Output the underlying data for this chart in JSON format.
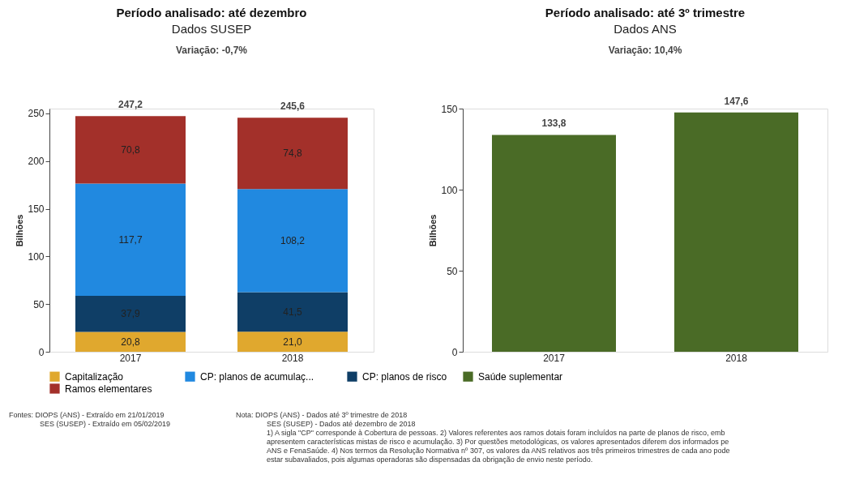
{
  "chart_data": [
    {
      "type": "bar",
      "title": "Período analisado: até dezembro",
      "subtitle": "Dados SUSEP",
      "ylabel": "Bilhões",
      "categories": [
        "2017",
        "2018"
      ],
      "stacked": true,
      "series": [
        {
          "name": "Capitalização",
          "color": "#e0a82e",
          "values": [
            20.8,
            21.0
          ],
          "value_labels": [
            "20,8",
            "21,0"
          ]
        },
        {
          "name": "CP: planos de risco",
          "color": "#0f3e66",
          "values": [
            37.9,
            41.5
          ],
          "value_labels": [
            "37,9",
            "41,5"
          ]
        },
        {
          "name": "CP: planos de acumulaç...",
          "color": "#2189e0",
          "values": [
            117.7,
            108.2
          ],
          "value_labels": [
            "117,7",
            "108,2"
          ]
        },
        {
          "name": "Ramos elementares",
          "color": "#a3302a",
          "values": [
            70.8,
            74.8
          ],
          "value_labels": [
            "70,8",
            "74,8"
          ]
        }
      ],
      "totals": [
        "247,2",
        "245,6"
      ],
      "ylim": [
        0,
        255
      ],
      "yticks": [
        0,
        50,
        100,
        150,
        200,
        250
      ],
      "grid": false,
      "legend": "bottom",
      "annotations": [
        "Variação:     -0,7%",
        "Fontes:  DIOPS (ANS) -  Extraído em 21/01/2019",
        "SES (SUSEP) -  Extraído em 05/02/2019"
      ]
    },
    {
      "type": "bar",
      "title": "Período analisado: até 3º trimestre",
      "subtitle": "Dados ANS",
      "ylabel": "Bilhões",
      "categories": [
        "2017",
        "2018"
      ],
      "series": [
        {
          "name": "Saúde suplementar",
          "color": "#4a6b26",
          "values": [
            133.8,
            147.6
          ]
        }
      ],
      "totals": [
        "133,8",
        "147,6"
      ],
      "ylim": [
        0,
        150
      ],
      "yticks": [
        0,
        50,
        100,
        150
      ],
      "grid": false,
      "legend": "bottom",
      "annotations": [
        "Variação:     10,4%",
        "Nota:  DIOPS (ANS) - Dados até 3º trimestre de 2018",
        "SES (SUSEP) - Dados até dezembro de 2018",
        "1) A sigla \"CP\" corresponde à Cobertura de pessoas. 2) Valores referentes aos ramos dotais foram incluídos na parte de planos de risco, emb",
        "apresentem características mistas de risco e acumulação. 3) Por questões metodológicas, os valores apresentados diferem dos informados pe",
        "ANS e FenaSaúde. 4) Nos termos da Resolução Normativa nº 307, os valores da ANS relativos aos três primeiros trimestres de cada ano pode",
        "estar subavaliados, pois algumas operadoras são dispensadas da obrigação de envio neste período."
      ]
    }
  ]
}
